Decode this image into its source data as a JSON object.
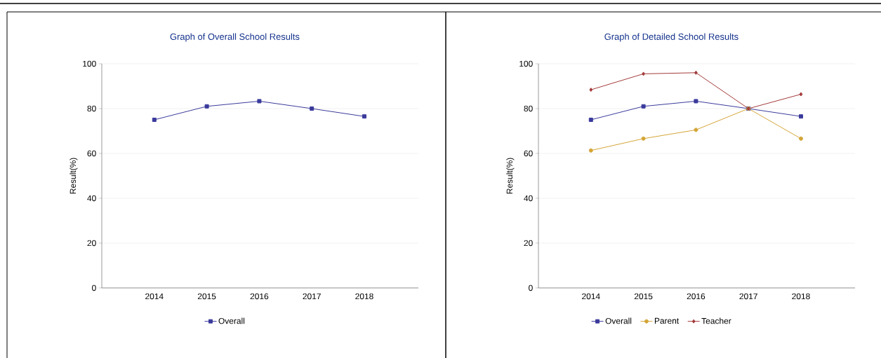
{
  "chart_data": [
    {
      "type": "line",
      "title": "Graph of Overall School Results",
      "ylabel": "Result(%)",
      "categories": [
        "2014",
        "2015",
        "2016",
        "2017",
        "2018"
      ],
      "ylim": [
        0,
        100
      ],
      "yticks": [
        0,
        20,
        40,
        60,
        80,
        100
      ],
      "grid": "y",
      "legend": "bottom",
      "series": [
        {
          "name": "Overall",
          "color": "#3a3a9c",
          "marker": "square",
          "values": [
            75,
            81,
            83.3,
            80,
            76.5
          ]
        }
      ]
    },
    {
      "type": "line",
      "title": "Graph of Detailed School Results",
      "ylabel": "Result(%)",
      "categories": [
        "2014",
        "2015",
        "2016",
        "2017",
        "2018"
      ],
      "ylim": [
        0,
        100
      ],
      "yticks": [
        0,
        20,
        40,
        60,
        80,
        100
      ],
      "grid": "y",
      "legend": "bottom",
      "series": [
        {
          "name": "Overall",
          "color": "#3a3a9c",
          "marker": "square",
          "values": [
            75,
            81,
            83.3,
            80,
            76.5
          ]
        },
        {
          "name": "Parent",
          "color": "#d4a537",
          "marker": "circle",
          "values": [
            61.3,
            66.6,
            70.5,
            80,
            66.6
          ]
        },
        {
          "name": "Teacher",
          "color": "#a33a3a",
          "marker": "diamond",
          "values": [
            88.4,
            95.5,
            96,
            80,
            86.4
          ]
        }
      ]
    }
  ]
}
